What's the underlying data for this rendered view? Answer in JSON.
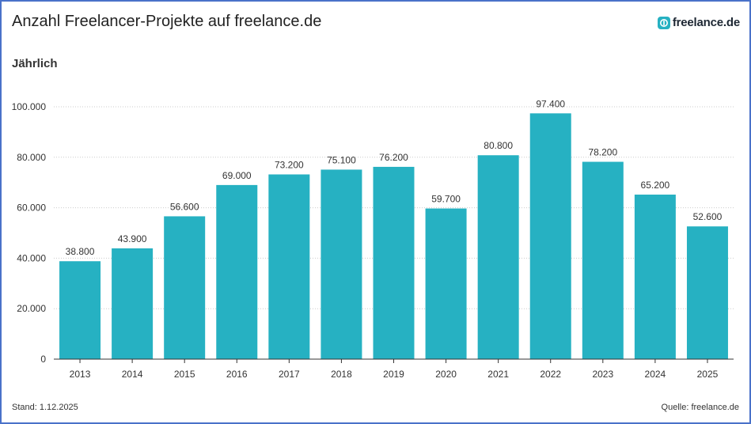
{
  "header": {
    "title": "Anzahl Freelancer-Projekte auf freelance.de",
    "logo_text": "freelance.de",
    "logo_icon": "freelance-logo-icon"
  },
  "subtitle": "Jährlich",
  "footer": {
    "left": "Stand: 1.12.2025",
    "right": "Quelle: freelance.de"
  },
  "colors": {
    "bar": "#26b1c2",
    "gridline": "#cccccc",
    "axis": "#333333",
    "frame": "#4a72c9"
  },
  "chart_data": {
    "type": "bar",
    "title": "Anzahl Freelancer-Projekte auf freelance.de",
    "subtitle": "Jährlich",
    "categories": [
      "2013",
      "2014",
      "2015",
      "2016",
      "2017",
      "2018",
      "2019",
      "2020",
      "2021",
      "2022",
      "2023",
      "2024",
      "2025"
    ],
    "values": [
      38800,
      43900,
      56600,
      69000,
      73200,
      75100,
      76200,
      59700,
      80800,
      97400,
      78200,
      65200,
      52600
    ],
    "value_labels": [
      "38.800",
      "43.900",
      "56.600",
      "69.000",
      "73.200",
      "75.100",
      "76.200",
      "59.700",
      "80.800",
      "97.400",
      "78.200",
      "65.200",
      "52.600"
    ],
    "yticks": [
      0,
      20000,
      40000,
      60000,
      80000,
      100000
    ],
    "ytick_labels": [
      "0",
      "20.000",
      "40.000",
      "60.000",
      "80.000",
      "100.000"
    ],
    "ylim": [
      0,
      100000
    ],
    "xlabel": "",
    "ylabel": "",
    "grid": true,
    "legend": "none"
  }
}
